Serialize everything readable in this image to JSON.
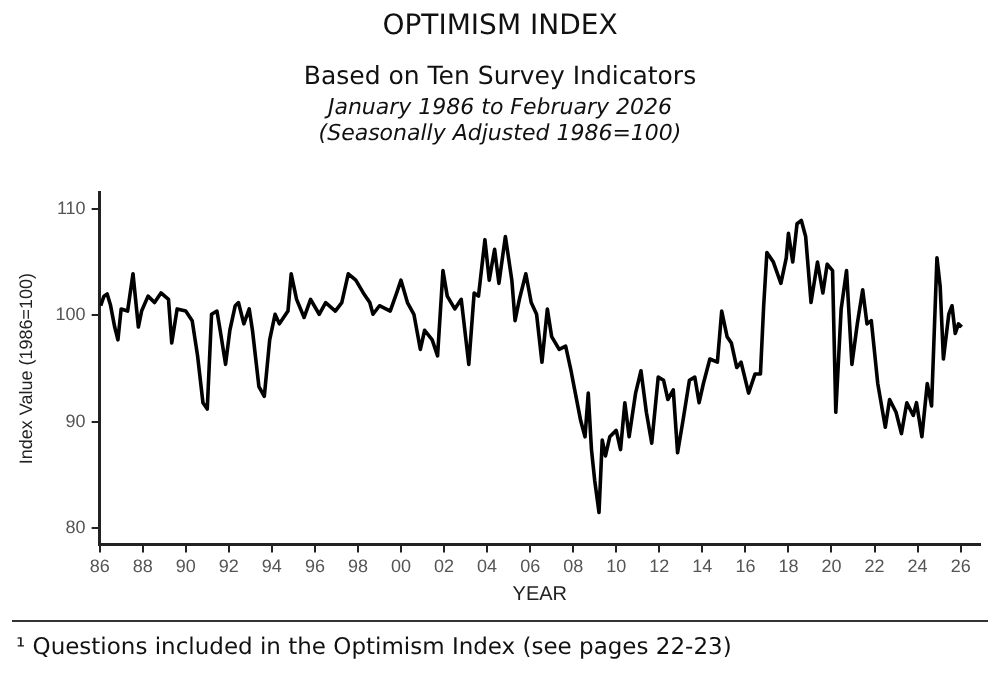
{
  "chart_data": {
    "type": "line",
    "title": "OPTIMISM INDEX",
    "subtitle": "Based on Ten Survey Indicators",
    "xlabel": "YEAR",
    "ylabel": "Index Value (1986=100)",
    "annotations": [
      "January 1986 to February 2026",
      "(Seasonally Adjusted 1986=100)",
      "¹ Questions included in the Optimism Index (see pages 22-23)"
    ],
    "xlim": [
      1986,
      2026.9
    ],
    "ylim": [
      78.5,
      111.5
    ],
    "yticks": [
      80,
      90,
      100,
      110
    ],
    "xticks": [
      {
        "value": 1986,
        "label": "86"
      },
      {
        "value": 1988,
        "label": "88"
      },
      {
        "value": 1990,
        "label": "90"
      },
      {
        "value": 1992,
        "label": "92"
      },
      {
        "value": 1994,
        "label": "94"
      },
      {
        "value": 1996,
        "label": "96"
      },
      {
        "value": 1998,
        "label": "98"
      },
      {
        "value": 2000,
        "label": "00"
      },
      {
        "value": 2002,
        "label": "02"
      },
      {
        "value": 2004,
        "label": "04"
      },
      {
        "value": 2006,
        "label": "06"
      },
      {
        "value": 2008,
        "label": "08"
      },
      {
        "value": 2010,
        "label": "10"
      },
      {
        "value": 2012,
        "label": "12"
      },
      {
        "value": 2014,
        "label": "14"
      },
      {
        "value": 2016,
        "label": "16"
      },
      {
        "value": 2018,
        "label": "18"
      },
      {
        "value": 2020,
        "label": "20"
      },
      {
        "value": 2022,
        "label": "22"
      },
      {
        "value": 2024,
        "label": "24"
      },
      {
        "value": 2026,
        "label": "26"
      }
    ],
    "grid": false,
    "legend": false,
    "marker": "none",
    "line_style": "solid",
    "series": [
      {
        "color": "#000000",
        "x": [
          1986.05,
          1986.2,
          1986.35,
          1986.5,
          1986.7,
          1986.85,
          1987.0,
          1987.3,
          1987.55,
          1987.8,
          1987.95,
          1988.25,
          1988.55,
          1988.85,
          1989.2,
          1989.35,
          1989.6,
          1990.0,
          1990.3,
          1990.55,
          1990.8,
          1991.0,
          1991.2,
          1991.45,
          1991.6,
          1991.85,
          1992.05,
          1992.3,
          1992.45,
          1992.7,
          1992.95,
          1993.1,
          1993.4,
          1993.65,
          1993.9,
          1994.15,
          1994.35,
          1994.75,
          1994.9,
          1995.15,
          1995.5,
          1995.8,
          1996.2,
          1996.5,
          1996.95,
          1997.25,
          1997.55,
          1997.9,
          1998.25,
          1998.55,
          1998.7,
          1999.0,
          1999.5,
          1999.8,
          2000.0,
          2000.3,
          2000.6,
          2000.9,
          2001.1,
          2001.45,
          2001.7,
          2001.95,
          2002.15,
          2002.5,
          2002.8,
          2003.15,
          2003.4,
          2003.6,
          2003.9,
          2004.1,
          2004.35,
          2004.55,
          2004.85,
          2005.15,
          2005.3,
          2005.5,
          2005.8,
          2006.05,
          2006.3,
          2006.55,
          2006.8,
          2007.0,
          2007.35,
          2007.65,
          2007.9,
          2008.1,
          2008.35,
          2008.55,
          2008.7,
          2008.85,
          2009.0,
          2009.2,
          2009.35,
          2009.5,
          2009.7,
          2010.0,
          2010.2,
          2010.4,
          2010.6,
          2010.9,
          2011.15,
          2011.4,
          2011.65,
          2011.95,
          2012.2,
          2012.4,
          2012.65,
          2012.85,
          2013.1,
          2013.4,
          2013.65,
          2013.85,
          2014.05,
          2014.35,
          2014.7,
          2014.9,
          2015.15,
          2015.35,
          2015.6,
          2015.8,
          2016.15,
          2016.45,
          2016.7,
          2016.85,
          2017.0,
          2017.3,
          2017.65,
          2017.9,
          2018.0,
          2018.2,
          2018.4,
          2018.6,
          2018.8,
          2019.05,
          2019.35,
          2019.6,
          2019.8,
          2020.05,
          2020.2,
          2020.45,
          2020.7,
          2020.95,
          2021.2,
          2021.45,
          2021.65,
          2021.85,
          2022.15,
          2022.5,
          2022.7,
          2023.0,
          2023.25,
          2023.5,
          2023.8,
          2023.95,
          2024.2,
          2024.45,
          2024.65,
          2024.9,
          2025.05,
          2025.2,
          2025.45,
          2025.6,
          2025.75,
          2025.9,
          2026.05
        ],
        "values": [
          100.9,
          101.8,
          102,
          101,
          98.9,
          97.7,
          100.6,
          100.4,
          103.9,
          98.9,
          100.4,
          101.8,
          101.2,
          102.1,
          101.5,
          97.4,
          100.6,
          100.4,
          99.5,
          96.2,
          91.8,
          91.2,
          100.1,
          100.4,
          98.6,
          95.4,
          98.6,
          100.9,
          101.2,
          99.2,
          100.6,
          98.6,
          93.3,
          92.4,
          97.7,
          100.1,
          99.2,
          100.4,
          103.9,
          101.5,
          99.8,
          101.5,
          100.1,
          101.2,
          100.4,
          101.2,
          103.9,
          103.3,
          102.1,
          101.2,
          100.1,
          100.9,
          100.4,
          102.1,
          103.3,
          101.2,
          100.1,
          96.8,
          98.6,
          97.7,
          96.2,
          104.2,
          101.8,
          100.6,
          101.5,
          95.4,
          102.1,
          101.8,
          107.1,
          103.3,
          106.2,
          103,
          107.4,
          103.3,
          99.5,
          101.5,
          103.9,
          101.2,
          100.1,
          95.6,
          100.6,
          98,
          96.8,
          97.1,
          94.8,
          92.7,
          90.1,
          88.6,
          92.7,
          87.4,
          84.5,
          81.5,
          88.3,
          86.8,
          88.6,
          89.2,
          87.4,
          91.8,
          88.6,
          92.7,
          94.8,
          90.9,
          88,
          94.2,
          93.9,
          92.1,
          93,
          87.1,
          90.1,
          93.9,
          94.2,
          91.8,
          93.6,
          95.9,
          95.6,
          100.4,
          98,
          97.4,
          95.1,
          95.6,
          92.7,
          94.5,
          94.5,
          100.9,
          105.9,
          105,
          103,
          105.4,
          107.7,
          105,
          108.6,
          108.9,
          107.4,
          101.2,
          105,
          102.1,
          104.8,
          104.2,
          90.9,
          100.6,
          104.2,
          95.4,
          99.2,
          102.4,
          99.2,
          99.5,
          93.6,
          89.5,
          92.1,
          90.9,
          88.9,
          91.8,
          90.6,
          91.8,
          88.6,
          93.6,
          91.5,
          105.4,
          102.7,
          95.9,
          100.1,
          100.9,
          98.3,
          99.2,
          98.9
        ]
      }
    ]
  }
}
